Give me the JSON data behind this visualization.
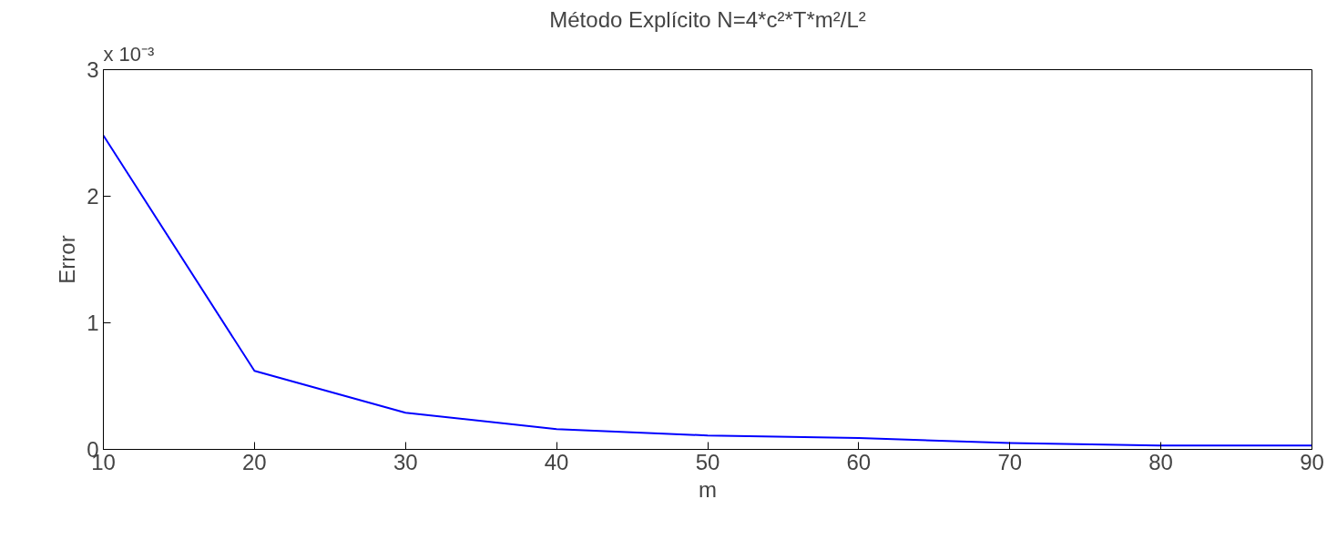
{
  "chart_data": {
    "type": "line",
    "title": "Método Explícito N=4*c²*T*m²/L²",
    "xlabel": "m",
    "ylabel": "Error",
    "annotations": [
      "x 10⁻³"
    ],
    "x": [
      10,
      20,
      30,
      40,
      50,
      60,
      70,
      80,
      90
    ],
    "series": [
      {
        "color": "#0000ff",
        "values": [
          2.48,
          0.62,
          0.29,
          0.16,
          0.11,
          0.09,
          0.05,
          0.03,
          0.03
        ]
      }
    ],
    "xlim": [
      10,
      90
    ],
    "xticks": [
      10,
      20,
      30,
      40,
      50,
      60,
      70,
      80,
      90
    ],
    "ylim": [
      0,
      3
    ],
    "yticks": [
      0,
      1,
      2,
      3
    ],
    "marker": "none",
    "line_style": "solid"
  }
}
